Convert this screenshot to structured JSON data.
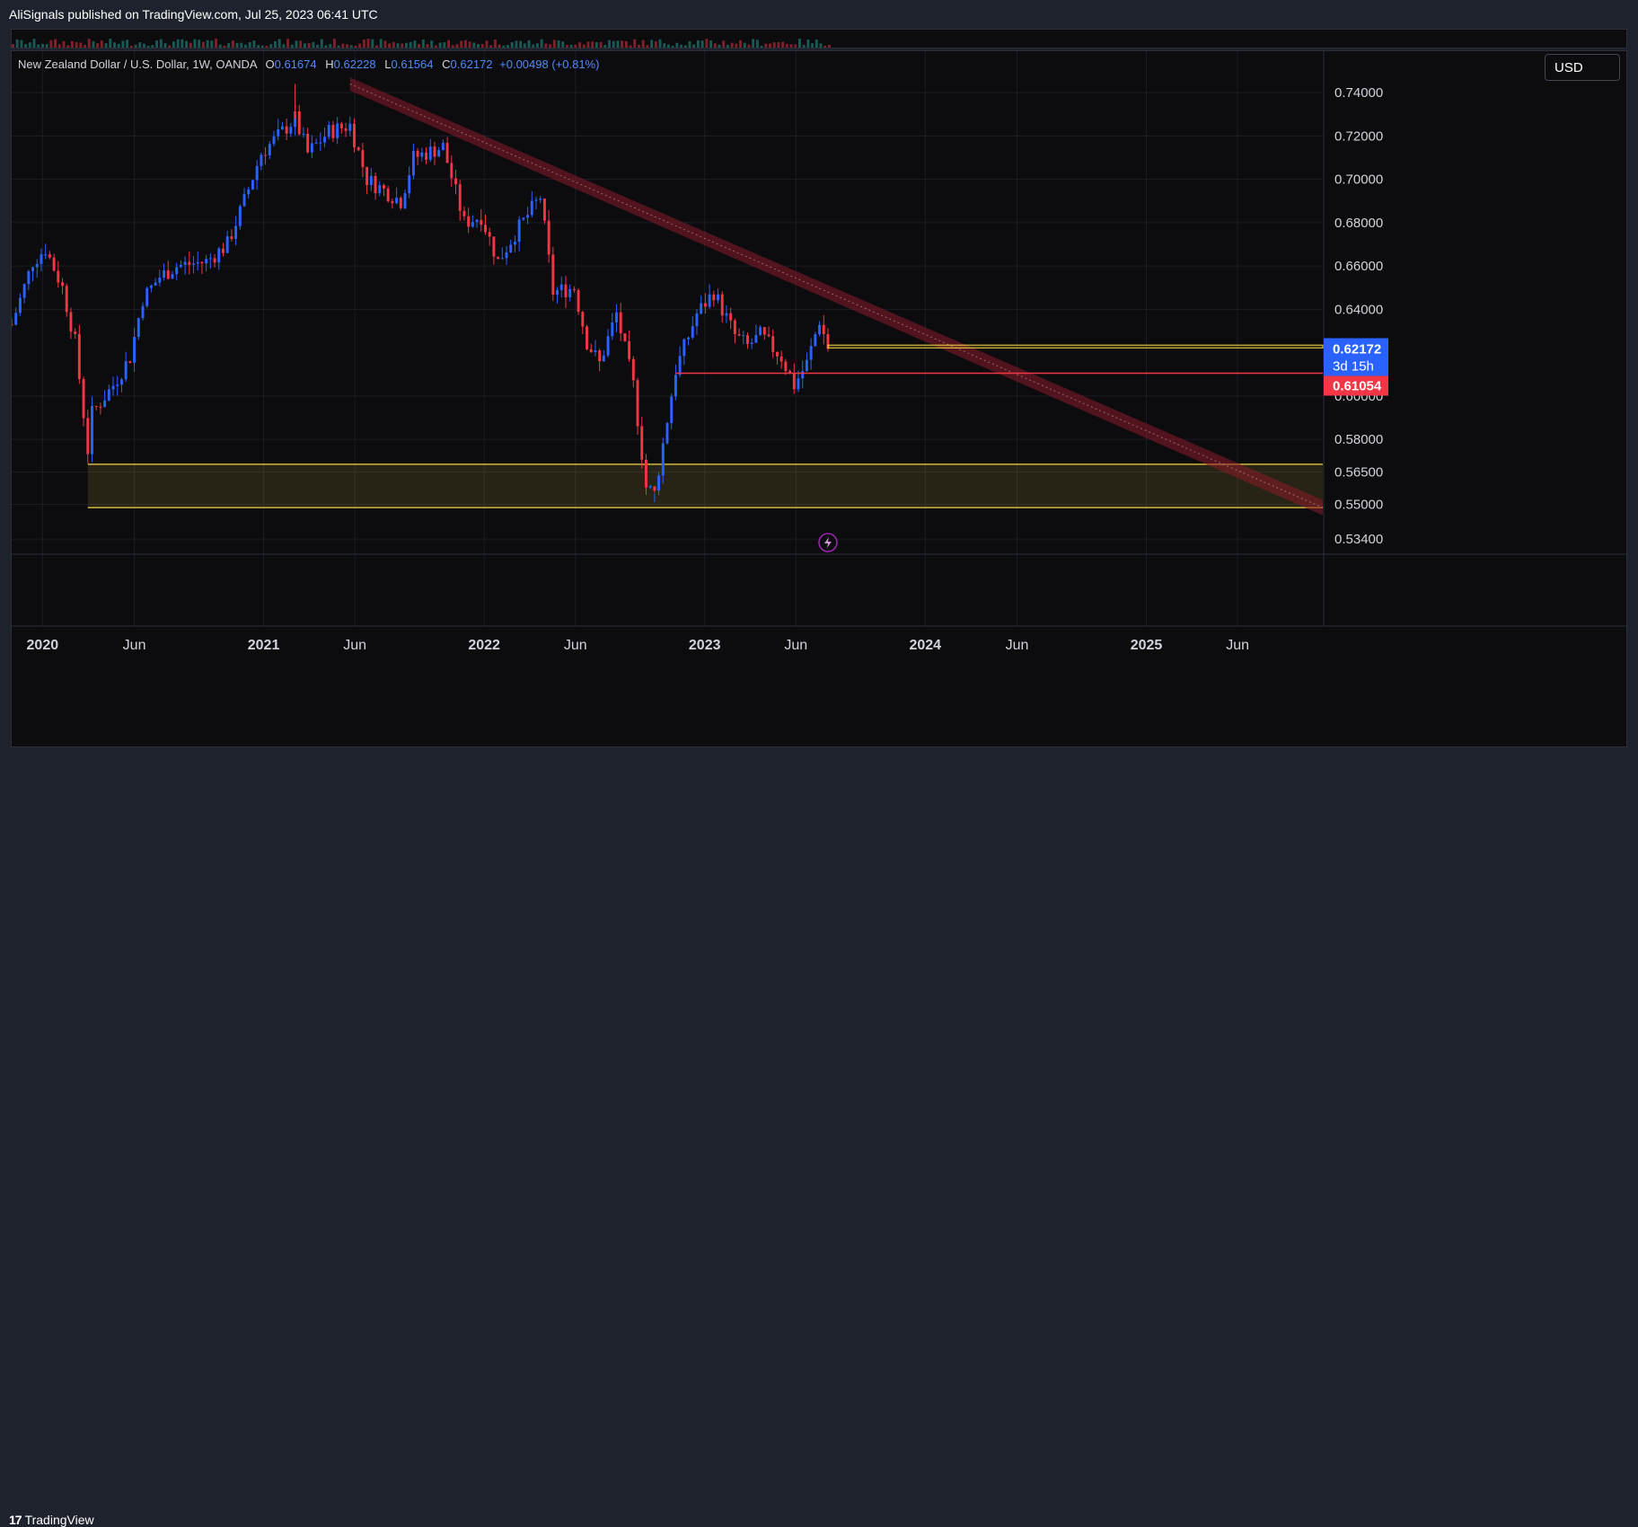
{
  "header": {
    "published": "AliSignals published on TradingView.com, Jul 25, 2023 06:41 UTC"
  },
  "legend": {
    "symbol": "New Zealand Dollar / U.S. Dollar, 1W, OANDA",
    "open_label": "O",
    "open": "0.61674",
    "high_label": "H",
    "high": "0.62228",
    "low_label": "L",
    "low": "0.61564",
    "close_label": "C",
    "close": "0.62172",
    "change": "+0.00498 (+0.81%)"
  },
  "currency_button": "USD",
  "footer": {
    "logo_text": "TradingView"
  },
  "colors": {
    "up": "#2962ff",
    "down": "#f23645",
    "background": "#0c0c0f",
    "zone": "#f5d742",
    "channel": "#8b1a2a",
    "support_line": "#f23645"
  },
  "icons": {
    "alert": "lightning-icon",
    "logo": "tradingview-logo-icon"
  },
  "chart_data": {
    "type": "candlestick",
    "symbol": "NZDUSD",
    "timeframe": "1W",
    "ylim": [
      0.527,
      0.75
    ],
    "y_ticks": [
      "0.74000",
      "0.72000",
      "0.70000",
      "0.68000",
      "0.66000",
      "0.64000",
      "0.60000",
      "0.58000",
      "0.56500",
      "0.55000",
      "0.53400"
    ],
    "y_tick_values": [
      0.74,
      0.72,
      0.7,
      0.68,
      0.66,
      0.64,
      0.6,
      0.58,
      0.565,
      0.55,
      0.534
    ],
    "x_ticks": [
      "2020",
      "Jun",
      "2021",
      "Jun",
      "2022",
      "Jun",
      "2023",
      "Jun",
      "2024",
      "Jun",
      "2025",
      "Jun"
    ],
    "x_tick_dates": [
      "2020-01-01",
      "2020-06-01",
      "2021-01-01",
      "2021-06-01",
      "2022-01-01",
      "2022-06-01",
      "2023-01-01",
      "2023-06-01",
      "2024-01-01",
      "2024-06-01",
      "2025-01-01",
      "2025-06-01"
    ],
    "x_range": [
      "2019-11-11",
      "2025-10-20"
    ],
    "last_bar_date": "2023-07-24",
    "price_labels": [
      {
        "value": 0.62172,
        "text": "0.62172",
        "countdown": "3d 15h",
        "color": "#2962ff"
      },
      {
        "value": 0.61054,
        "text": "0.61054",
        "color": "#f23645"
      }
    ],
    "close_path": [
      [
        "2019-11-11",
        0.633
      ],
      [
        "2019-12-16",
        0.662
      ],
      [
        "2020-01-06",
        0.668
      ],
      [
        "2020-02-03",
        0.65
      ],
      [
        "2020-02-24",
        0.625
      ],
      [
        "2020-03-16",
        0.575
      ],
      [
        "2020-03-23",
        0.592
      ],
      [
        "2020-04-27",
        0.605
      ],
      [
        "2020-05-25",
        0.618
      ],
      [
        "2020-06-15",
        0.645
      ],
      [
        "2020-07-13",
        0.655
      ],
      [
        "2020-08-10",
        0.66
      ],
      [
        "2020-09-28",
        0.662
      ],
      [
        "2020-11-02",
        0.67
      ],
      [
        "2020-11-30",
        0.69
      ],
      [
        "2020-12-28",
        0.712
      ],
      [
        "2021-02-22",
        0.728
      ],
      [
        "2021-03-15",
        0.712
      ],
      [
        "2021-04-19",
        0.722
      ],
      [
        "2021-05-24",
        0.725
      ],
      [
        "2021-06-21",
        0.7
      ],
      [
        "2021-07-19",
        0.695
      ],
      [
        "2021-08-16",
        0.69
      ],
      [
        "2021-09-06",
        0.71
      ],
      [
        "2021-10-25",
        0.715
      ],
      [
        "2021-11-29",
        0.68
      ],
      [
        "2021-12-27",
        0.683
      ],
      [
        "2022-01-24",
        0.662
      ],
      [
        "2022-02-21",
        0.675
      ],
      [
        "2022-04-04",
        0.692
      ],
      [
        "2022-04-25",
        0.648
      ],
      [
        "2022-05-30",
        0.65
      ],
      [
        "2022-06-20",
        0.625
      ],
      [
        "2022-07-11",
        0.615
      ],
      [
        "2022-08-08",
        0.638
      ],
      [
        "2022-09-05",
        0.605
      ],
      [
        "2022-09-26",
        0.558
      ],
      [
        "2022-10-10",
        0.555
      ],
      [
        "2022-11-14",
        0.612
      ],
      [
        "2022-12-19",
        0.638
      ],
      [
        "2023-01-16",
        0.648
      ],
      [
        "2023-02-20",
        0.628
      ],
      [
        "2023-03-13",
        0.623
      ],
      [
        "2023-04-03",
        0.628
      ],
      [
        "2023-05-08",
        0.618
      ],
      [
        "2023-05-29",
        0.605
      ],
      [
        "2023-06-19",
        0.615
      ],
      [
        "2023-07-10",
        0.635
      ],
      [
        "2023-07-24",
        0.622
      ]
    ],
    "low_extreme": {
      "date": "2022-10-10",
      "value": 0.551
    },
    "high_extreme": {
      "date": "2021-02-22",
      "value": 0.744
    },
    "drawings": {
      "demand_zone": {
        "from": "2020-03-16",
        "to": "2025-10-20",
        "low": 0.5485,
        "high": 0.5685
      },
      "support_line": {
        "from": "2022-11-14",
        "to": "2025-10-20",
        "value": 0.61054
      },
      "resistance_band": {
        "from": "2023-07-24",
        "to": "2025-10-20",
        "low": 0.6222,
        "high": 0.6235
      },
      "descending_channel": {
        "start": {
          "date": "2021-05-24",
          "upper": 0.747,
          "lower": 0.741
        },
        "end": {
          "date": "2025-10-20",
          "upper": 0.552,
          "lower": 0.545
        }
      }
    }
  }
}
